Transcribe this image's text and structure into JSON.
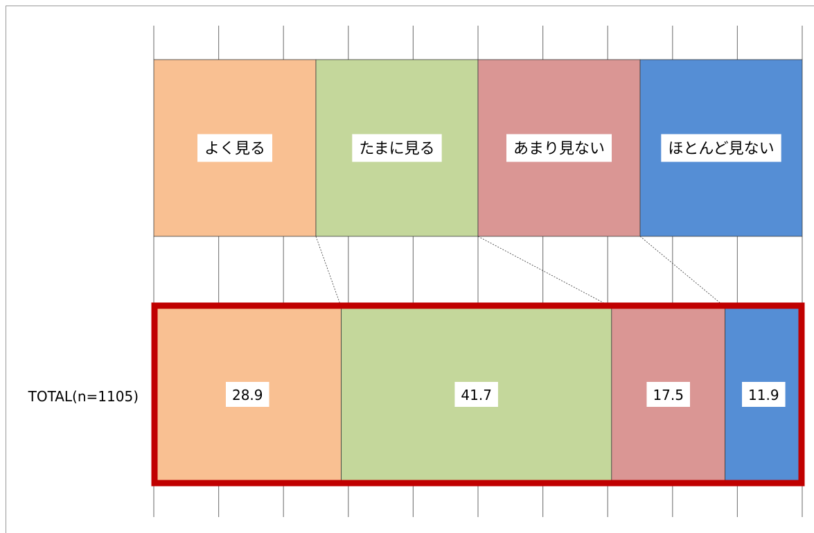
{
  "chart_data": {
    "type": "bar",
    "orientation": "horizontal",
    "stacked": true,
    "percent_stacked": true,
    "title": "",
    "xlabel": "",
    "ylabel": "",
    "xlim": [
      0,
      100
    ],
    "grid": true,
    "categories": [
      "TOTAL(n=1105)"
    ],
    "series": [
      {
        "name": "よく見る",
        "values": [
          28.9
        ],
        "color": "#f9c092"
      },
      {
        "name": "たまに見る",
        "values": [
          41.7
        ],
        "color": "#c4d79b"
      },
      {
        "name": "あまり見ない",
        "values": [
          17.5
        ],
        "color": "#da9694"
      },
      {
        "name": "ほとんど見ない",
        "values": [
          11.9
        ],
        "color": "#558ed5"
      }
    ],
    "data_labels": [
      "28.9",
      "41.7",
      "17.5",
      "11.9"
    ],
    "legend": {
      "position": "top",
      "entries": [
        "よく見る",
        "たまに見る",
        "あまり見ない",
        "ほとんど見ない"
      ]
    },
    "highlight": {
      "color": "#c00000",
      "target": "TOTAL(n=1105)"
    },
    "gridline_color": "#808080"
  }
}
